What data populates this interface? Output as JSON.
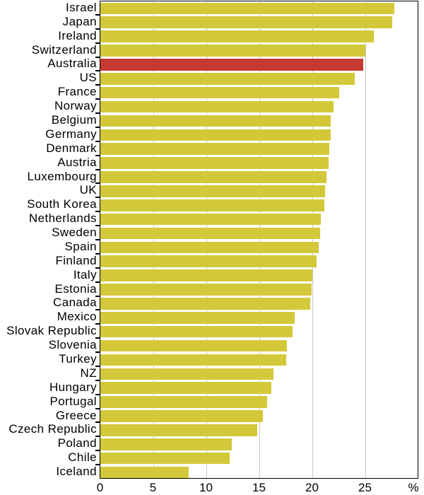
{
  "chart_data": {
    "type": "bar",
    "orientation": "horizontal",
    "title": "",
    "xlabel": "%",
    "ylabel": "",
    "xlim": [
      0,
      30
    ],
    "x_ticks": [
      0,
      5,
      10,
      15,
      20,
      25
    ],
    "x_tick_labels": [
      "0",
      "5",
      "10",
      "15",
      "20",
      "25"
    ],
    "unit_label": "%",
    "grid": "vertical-on",
    "legend": "none",
    "categories": [
      "Israel",
      "Japan",
      "Ireland",
      "Switzerland",
      "Australia",
      "US",
      "France",
      "Norway",
      "Belgium",
      "Germany",
      "Denmark",
      "Austria",
      "Luxembourg",
      "UK",
      "South Korea",
      "Netherlands",
      "Sweden",
      "Spain",
      "Finland",
      "Italy",
      "Estonia",
      "Canada",
      "Mexico",
      "Slovak Republic",
      "Slovenia",
      "Turkey",
      "NZ",
      "Hungary",
      "Portugal",
      "Greece",
      "Czech Republic",
      "Poland",
      "Chile",
      "Iceland"
    ],
    "values": [
      27.7,
      27.5,
      25.8,
      25.0,
      24.8,
      24.0,
      22.5,
      22.0,
      21.7,
      21.7,
      21.6,
      21.5,
      21.3,
      21.2,
      21.1,
      20.8,
      20.7,
      20.6,
      20.4,
      20.0,
      19.9,
      19.8,
      18.3,
      18.1,
      17.6,
      17.5,
      16.3,
      16.1,
      15.7,
      15.3,
      14.8,
      12.4,
      12.2,
      8.3
    ],
    "highlight_country": "Australia",
    "colors": {
      "bar_default": "#d3c83a",
      "bar_highlight": "#c43a32",
      "gridline": "#c9c9c9",
      "axis_border": "#000000",
      "text": "#000000"
    }
  }
}
